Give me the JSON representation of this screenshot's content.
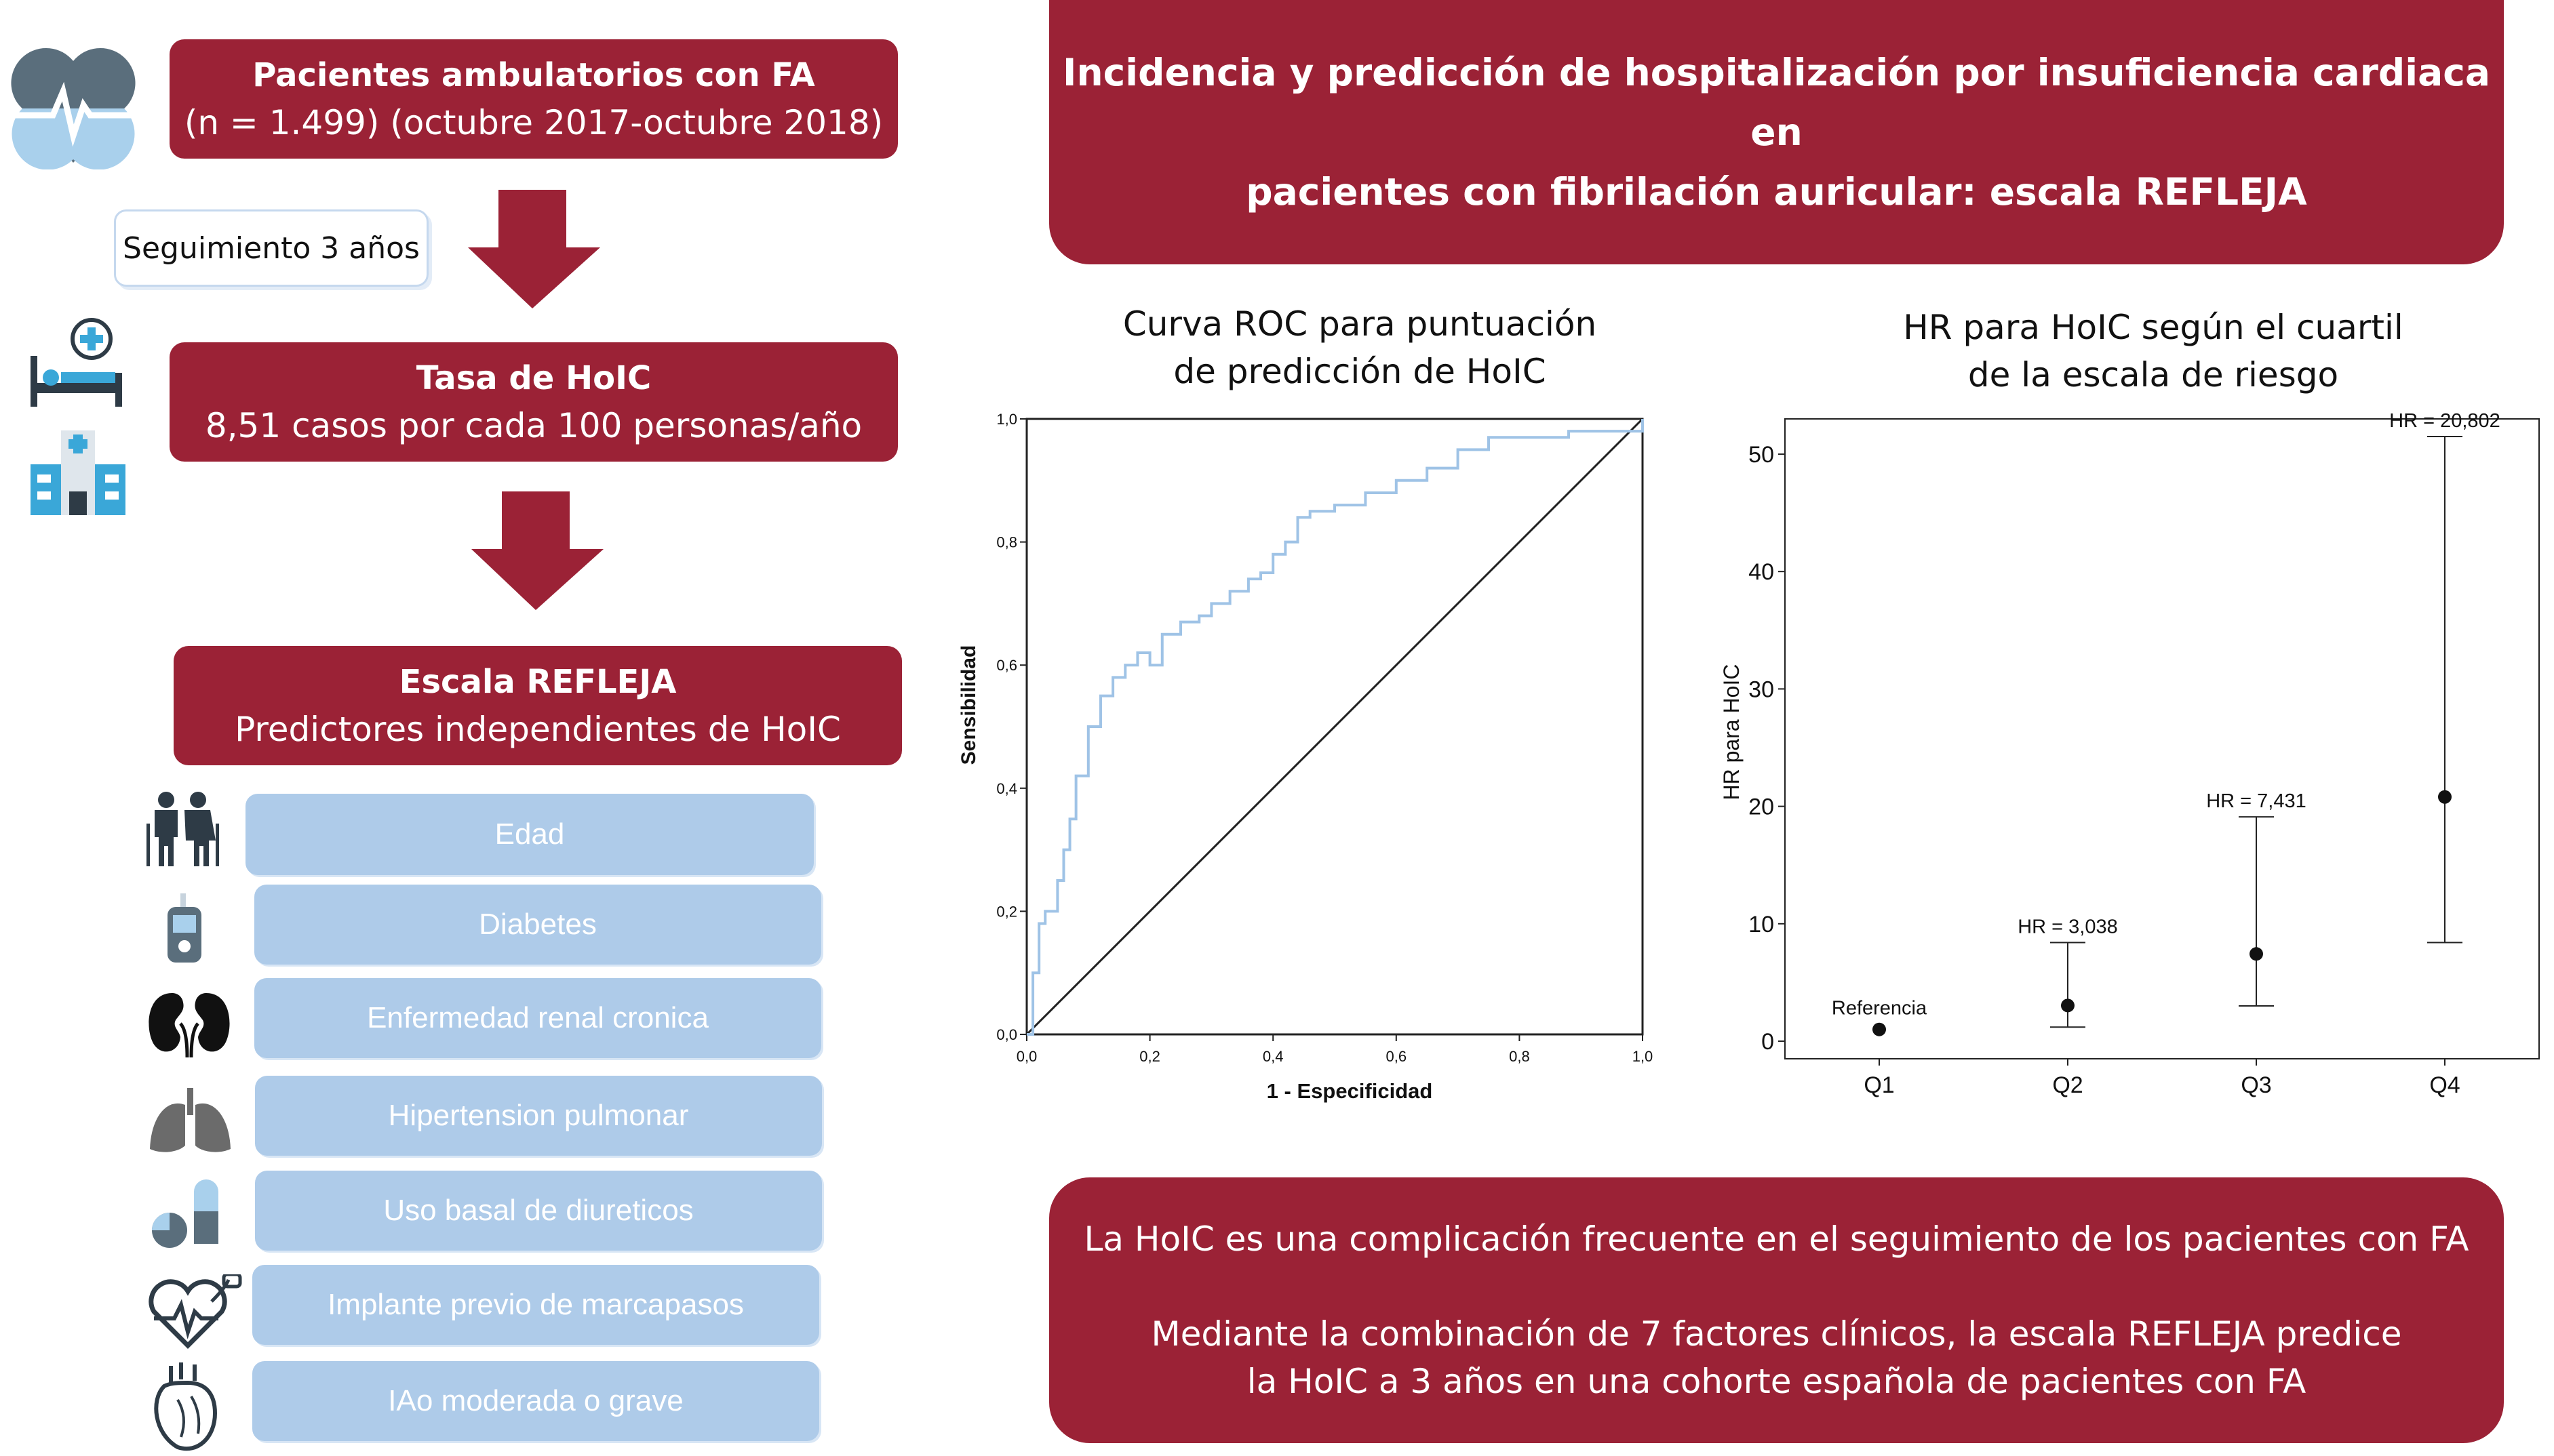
{
  "flow": {
    "box1_title": "Pacientes ambulatorios con FA",
    "box1_sub": "(n = 1.499) (octubre 2017-octubre 2018)",
    "followup": "Seguimiento 3 años",
    "box2_title": "Tasa de HoIC",
    "box2_sub": "8,51 casos por cada 100 personas/año",
    "box3_title": "Escala REFLEJA",
    "box3_sub": "Predictores independientes de HoIC"
  },
  "predictors": [
    {
      "label": "Edad",
      "icon": "elderly-couple-icon"
    },
    {
      "label": "Diabetes",
      "icon": "glucometer-icon"
    },
    {
      "label": "Enfermedad renal cronica",
      "icon": "kidneys-icon"
    },
    {
      "label": "Hipertension pulmonar",
      "icon": "lungs-icon"
    },
    {
      "label": "Uso basal de diureticos",
      "icon": "pills-icon"
    },
    {
      "label": "Implante previo de marcapasos",
      "icon": "pacemaker-heart-icon"
    },
    {
      "label": "IAo moderada o grave",
      "icon": "anatomical-heart-icon"
    }
  ],
  "header": {
    "title_line1": "Incidencia y predicción de hospitalización por insuficiencia cardiaca en",
    "title_line2": "pacientes con fibrilación auricular: escala REFLEJA"
  },
  "roc": {
    "title_line1": "Curva ROC para puntuación",
    "title_line2": "de predicción de HoIC",
    "ylabel": "Sensibilidad",
    "xlabel": "1 - Especificidad",
    "ticks": [
      "0,0",
      "0,2",
      "0,4",
      "0,6",
      "0,8",
      "1,0"
    ]
  },
  "hr": {
    "title_line1": "HR para HoIC según el cuartil",
    "title_line2": "de la escala de riesgo",
    "ylabel": "HR para HoIC"
  },
  "footer": {
    "line1": "La HoIC es una complicación frecuente en el seguimiento de los pacientes con FA",
    "line2": "Mediante la combinación de 7 factores clínicos, la escala REFLEJA predice",
    "line3": "la HoIC a 3 años en una cohorte española de pacientes con FA"
  },
  "colors": {
    "brand_red": "#9b2236",
    "pill_blue": "#aecbe9",
    "roc_curve": "#9fc3e6"
  },
  "chart_data": [
    {
      "type": "line",
      "title": "Curva ROC para puntuación de predicción de HoIC",
      "xlabel": "1 - Especificidad",
      "ylabel": "Sensibilidad",
      "xlim": [
        0,
        1
      ],
      "ylim": [
        0,
        1
      ],
      "series": [
        {
          "x": [
            0,
            0.01,
            0.02,
            0.03,
            0.05,
            0.06,
            0.07,
            0.08,
            0.1,
            0.12,
            0.14,
            0.16,
            0.18,
            0.2,
            0.22,
            0.25,
            0.28,
            0.3,
            0.33,
            0.36,
            0.38,
            0.4,
            0.42,
            0.44,
            0.46,
            0.5,
            0.55,
            0.6,
            0.65,
            0.7,
            0.75,
            0.8,
            0.88,
            0.95,
            1.0
          ],
          "y": [
            0,
            0.1,
            0.18,
            0.2,
            0.25,
            0.3,
            0.35,
            0.42,
            0.5,
            0.55,
            0.58,
            0.6,
            0.62,
            0.6,
            0.65,
            0.67,
            0.68,
            0.7,
            0.72,
            0.74,
            0.75,
            0.78,
            0.8,
            0.84,
            0.85,
            0.86,
            0.88,
            0.9,
            0.92,
            0.95,
            0.97,
            0.97,
            0.98,
            0.98,
            1.0
          ]
        },
        {
          "x": [
            0,
            1
          ],
          "y": [
            0,
            1
          ]
        }
      ]
    },
    {
      "type": "scatter",
      "title": "HR para HoIC según el cuartil de la escala de riesgo",
      "ylabel": "HR para HoIC",
      "categories": [
        "Q1",
        "Q2",
        "Q3",
        "Q4"
      ],
      "yticks": [
        0,
        10,
        20,
        30,
        40,
        50
      ],
      "ylim": [
        -1.5,
        53
      ],
      "points": [
        {
          "label": "Referencia",
          "value": 1.0,
          "low": null,
          "high": null
        },
        {
          "label": "HR = 3,038",
          "value": 3.038,
          "low": 1.2,
          "high": 8.4
        },
        {
          "label": "HR = 7,431",
          "value": 7.431,
          "low": 3.0,
          "high": 19.1
        },
        {
          "label": "HR = 20,802",
          "value": 20.802,
          "low": 8.4,
          "high": 51.5
        }
      ]
    }
  ]
}
